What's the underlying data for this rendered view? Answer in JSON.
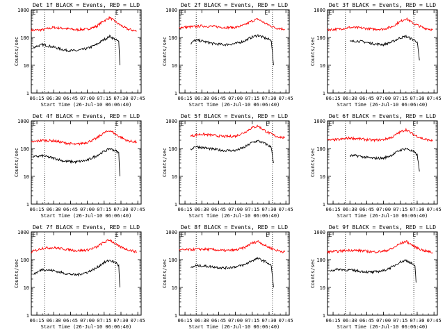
{
  "chart_data": [
    {
      "type": "line",
      "title": "Det 1f BLACK = Events, RED = LLD",
      "xlabel": "Start Time (26-Jul-10 06:06:40)",
      "ylabel": "Counts/sec",
      "xticks": [
        "06:15",
        "06:30",
        "06:45",
        "07:00",
        "07:15",
        "07:30",
        "07:45"
      ],
      "yticks": [
        "1",
        "10",
        "100",
        "1000"
      ],
      "yscale": "log",
      "ylim": [
        1,
        1000
      ],
      "xlim_minutes": [
        "06:10",
        "07:48"
      ],
      "dotted_lines": [
        "06:22",
        "07:25"
      ],
      "markers": [
        {
          "label": "E",
          "at": "06:11"
        },
        {
          "label": "E",
          "at": "07:25"
        }
      ],
      "series": [
        {
          "color": "#ff0000",
          "x": [
            "06:10",
            "06:20",
            "06:30",
            "06:40",
            "06:50",
            "07:00",
            "07:08",
            "07:14",
            "07:20",
            "07:28",
            "07:36",
            "07:44"
          ],
          "y": [
            180,
            190,
            230,
            210,
            190,
            200,
            250,
            380,
            520,
            300,
            200,
            170
          ]
        },
        {
          "color": "#000000",
          "x": [
            "06:12",
            "06:20",
            "06:30",
            "06:40",
            "06:50",
            "07:00",
            "07:08",
            "07:14",
            "07:20",
            "07:26",
            "07:28",
            "07:29"
          ],
          "y": [
            45,
            55,
            45,
            35,
            33,
            40,
            55,
            80,
            110,
            80,
            70,
            10
          ]
        }
      ]
    },
    {
      "type": "line",
      "title": "Det 2f BLACK = Events, RED = LLD",
      "xlabel": "Start Time (26-Jul-10 06:06:40)",
      "ylabel": "Counts/sec",
      "xticks": [
        "06:15",
        "06:30",
        "06:45",
        "07:00",
        "07:15",
        "07:30",
        "07:45"
      ],
      "yticks": [
        "1",
        "10",
        "100",
        "1000"
      ],
      "yscale": "log",
      "ylim": [
        1,
        1000
      ],
      "xlim_minutes": [
        "06:10",
        "07:48"
      ],
      "dotted_lines": [
        "06:25",
        "07:33"
      ],
      "markers": [
        {
          "label": "E",
          "at": "06:11"
        },
        {
          "label": "E",
          "at": "07:26"
        }
      ],
      "series": [
        {
          "color": "#ff0000",
          "x": [
            "06:10",
            "06:20",
            "06:30",
            "06:40",
            "06:50",
            "07:00",
            "07:08",
            "07:14",
            "07:20",
            "07:28",
            "07:36",
            "07:44"
          ],
          "y": [
            230,
            240,
            260,
            250,
            230,
            230,
            280,
            380,
            460,
            300,
            220,
            200
          ]
        },
        {
          "color": "#000000",
          "x": [
            "06:20",
            "06:24",
            "06:30",
            "06:40",
            "06:50",
            "07:00",
            "07:08",
            "07:14",
            "07:20",
            "07:28",
            "07:32",
            "07:34"
          ],
          "y": [
            60,
            80,
            75,
            60,
            55,
            60,
            75,
            100,
            120,
            90,
            80,
            10
          ]
        }
      ]
    },
    {
      "type": "line",
      "title": "Det 3f BLACK = Events, RED = LLD",
      "xlabel": "Start Time (26-Jul-10 06:06:40)",
      "ylabel": "Counts/sec",
      "xticks": [
        "06:15",
        "06:30",
        "06:45",
        "07:00",
        "07:15",
        "07:30",
        "07:45"
      ],
      "yticks": [
        "1",
        "10",
        "100",
        "1000"
      ],
      "yscale": "log",
      "ylim": [
        1,
        1000
      ],
      "xlim_minutes": [
        "06:10",
        "07:48"
      ],
      "dotted_lines": [
        "06:26",
        "07:27"
      ],
      "markers": [
        {
          "label": "E",
          "at": "06:11"
        },
        {
          "label": "E",
          "at": "07:26"
        }
      ],
      "series": [
        {
          "color": "#ff0000",
          "x": [
            "06:10",
            "06:20",
            "06:30",
            "06:40",
            "06:50",
            "07:00",
            "07:08",
            "07:14",
            "07:20",
            "07:28",
            "07:36",
            "07:44"
          ],
          "y": [
            190,
            200,
            230,
            220,
            200,
            200,
            250,
            360,
            480,
            300,
            220,
            190
          ]
        },
        {
          "color": "#000000",
          "x": [
            "06:30",
            "06:36",
            "06:42",
            "06:50",
            "07:00",
            "07:08",
            "07:14",
            "07:20",
            "07:26",
            "07:30",
            "07:32"
          ],
          "y": [
            70,
            75,
            70,
            60,
            55,
            70,
            95,
            110,
            85,
            70,
            15
          ]
        }
      ]
    },
    {
      "type": "line",
      "title": "Det 4f BLACK = Events, RED = LLD",
      "xlabel": "Start Time (26-Jul-10 06:06:40)",
      "ylabel": "Counts/sec",
      "xticks": [
        "06:15",
        "06:30",
        "06:45",
        "07:00",
        "07:15",
        "07:30",
        "07:45"
      ],
      "yticks": [
        "1",
        "10",
        "100",
        "1000"
      ],
      "yscale": "log",
      "ylim": [
        1,
        1000
      ],
      "xlim_minutes": [
        "06:10",
        "07:48"
      ],
      "dotted_lines": [
        "06:22",
        "07:25"
      ],
      "markers": [
        {
          "label": "E",
          "at": "06:11"
        },
        {
          "label": "E",
          "at": "07:25"
        }
      ],
      "series": [
        {
          "color": "#ff0000",
          "x": [
            "06:10",
            "06:20",
            "06:30",
            "06:40",
            "06:50",
            "07:00",
            "07:08",
            "07:14",
            "07:20",
            "07:28",
            "07:36",
            "07:44"
          ],
          "y": [
            170,
            200,
            190,
            160,
            140,
            170,
            230,
            350,
            450,
            280,
            190,
            170
          ]
        },
        {
          "color": "#000000",
          "x": [
            "06:12",
            "06:20",
            "06:30",
            "06:40",
            "06:50",
            "07:00",
            "07:08",
            "07:14",
            "07:20",
            "07:26",
            "07:28",
            "07:29"
          ],
          "y": [
            50,
            55,
            45,
            35,
            33,
            38,
            55,
            75,
            100,
            80,
            70,
            10
          ]
        }
      ]
    },
    {
      "type": "line",
      "title": "Det 5f BLACK = Events, RED = LLD",
      "xlabel": "Start Time (26-Jul-10 06:06:40)",
      "ylabel": "Counts/sec",
      "xticks": [
        "06:15",
        "06:30",
        "06:45",
        "07:00",
        "07:15",
        "07:30",
        "07:45"
      ],
      "yticks": [
        "1",
        "10",
        "100",
        "1000"
      ],
      "yscale": "log",
      "ylim": [
        1,
        1000
      ],
      "xlim_minutes": [
        "06:10",
        "07:48"
      ],
      "dotted_lines": [
        "06:25",
        "07:33"
      ],
      "markers": [
        {
          "label": "E",
          "at": "06:11"
        },
        {
          "label": "E",
          "at": "07:27"
        }
      ],
      "series": [
        {
          "color": "#ff0000",
          "x": [
            "06:20",
            "06:25",
            "06:30",
            "06:40",
            "06:50",
            "07:00",
            "07:08",
            "07:14",
            "07:20",
            "07:28",
            "07:36",
            "07:44"
          ],
          "y": [
            280,
            310,
            330,
            300,
            270,
            280,
            380,
            550,
            650,
            400,
            280,
            240
          ]
        },
        {
          "color": "#000000",
          "x": [
            "06:20",
            "06:24",
            "06:30",
            "06:40",
            "06:50",
            "07:00",
            "07:08",
            "07:14",
            "07:20",
            "07:28",
            "07:32",
            "07:34"
          ],
          "y": [
            90,
            120,
            110,
            95,
            85,
            85,
            110,
            160,
            190,
            140,
            110,
            30
          ]
        }
      ]
    },
    {
      "type": "line",
      "title": "Det 6f BLACK = Events, RED = LLD",
      "xlabel": "Start Time (26-Jul-10 06:06:40)",
      "ylabel": "Counts/sec",
      "xticks": [
        "06:15",
        "06:30",
        "06:45",
        "07:00",
        "07:15",
        "07:30",
        "07:45"
      ],
      "yticks": [
        "1",
        "10",
        "100",
        "1000"
      ],
      "yscale": "log",
      "ylim": [
        1,
        1000
      ],
      "xlim_minutes": [
        "06:10",
        "07:48"
      ],
      "dotted_lines": [
        "06:26",
        "07:27"
      ],
      "markers": [
        {
          "label": "E",
          "at": "06:11"
        },
        {
          "label": "E",
          "at": "07:26"
        }
      ],
      "series": [
        {
          "color": "#ff0000",
          "x": [
            "06:10",
            "06:20",
            "06:30",
            "06:40",
            "06:50",
            "07:00",
            "07:08",
            "07:14",
            "07:20",
            "07:28",
            "07:36",
            "07:44"
          ],
          "y": [
            200,
            210,
            240,
            220,
            200,
            210,
            260,
            380,
            480,
            300,
            220,
            190
          ]
        },
        {
          "color": "#000000",
          "x": [
            "06:30",
            "06:36",
            "06:42",
            "06:50",
            "07:00",
            "07:08",
            "07:14",
            "07:20",
            "07:26",
            "07:30",
            "07:32"
          ],
          "y": [
            55,
            55,
            50,
            45,
            45,
            60,
            85,
            100,
            80,
            60,
            15
          ]
        }
      ]
    },
    {
      "type": "line",
      "title": "Det 7f BLACK = Events, RED = LLD",
      "xlabel": "Start Time (26-Jul-10 06:06:40)",
      "ylabel": "Counts/sec",
      "xticks": [
        "06:15",
        "06:30",
        "06:45",
        "07:00",
        "07:15",
        "07:30",
        "07:45"
      ],
      "yticks": [
        "1",
        "10",
        "100",
        "1000"
      ],
      "yscale": "log",
      "ylim": [
        1,
        1000
      ],
      "xlim_minutes": [
        "06:10",
        "07:48"
      ],
      "dotted_lines": [
        "06:22",
        "07:25"
      ],
      "markers": [
        {
          "label": "E",
          "at": "06:11"
        },
        {
          "label": "E",
          "at": "07:25"
        }
      ],
      "series": [
        {
          "color": "#ff0000",
          "x": [
            "06:10",
            "06:20",
            "06:30",
            "06:40",
            "06:50",
            "07:00",
            "07:08",
            "07:14",
            "07:20",
            "07:28",
            "07:36",
            "07:44"
          ],
          "y": [
            190,
            260,
            270,
            240,
            210,
            220,
            280,
            400,
            520,
            300,
            230,
            190
          ]
        },
        {
          "color": "#000000",
          "x": [
            "06:12",
            "06:20",
            "06:30",
            "06:40",
            "06:50",
            "07:00",
            "07:08",
            "07:14",
            "07:20",
            "07:26",
            "07:28",
            "07:29"
          ],
          "y": [
            30,
            45,
            40,
            32,
            28,
            35,
            50,
            75,
            95,
            75,
            60,
            10
          ]
        }
      ]
    },
    {
      "type": "line",
      "title": "Det 8f BLACK = Events, RED = LLD",
      "xlabel": "Start Time (26-Jul-10 06:06:40)",
      "ylabel": "Counts/sec",
      "xticks": [
        "06:15",
        "06:30",
        "06:45",
        "07:00",
        "07:15",
        "07:30",
        "07:45"
      ],
      "yticks": [
        "1",
        "10",
        "100",
        "1000"
      ],
      "yscale": "log",
      "ylim": [
        1,
        1000
      ],
      "xlim_minutes": [
        "06:10",
        "07:48"
      ],
      "dotted_lines": [
        "06:25",
        "07:33"
      ],
      "markers": [
        {
          "label": "E",
          "at": "06:11"
        },
        {
          "label": "E",
          "at": "07:27"
        }
      ],
      "series": [
        {
          "color": "#ff0000",
          "x": [
            "06:10",
            "06:20",
            "06:30",
            "06:40",
            "06:50",
            "07:00",
            "07:08",
            "07:14",
            "07:20",
            "07:28",
            "07:36",
            "07:44"
          ],
          "y": [
            220,
            230,
            240,
            230,
            210,
            220,
            270,
            380,
            460,
            300,
            220,
            190
          ]
        },
        {
          "color": "#000000",
          "x": [
            "06:20",
            "06:24",
            "06:30",
            "06:40",
            "06:50",
            "07:00",
            "07:08",
            "07:14",
            "07:20",
            "07:28",
            "07:32",
            "07:34"
          ],
          "y": [
            50,
            60,
            60,
            55,
            50,
            55,
            65,
            90,
            110,
            80,
            60,
            10
          ]
        }
      ]
    },
    {
      "type": "line",
      "title": "Det 9f BLACK = Events, RED = LLD",
      "xlabel": "Start Time (26-Jul-10 06:06:40)",
      "ylabel": "Counts/sec",
      "xticks": [
        "06:15",
        "06:30",
        "06:45",
        "07:00",
        "07:15",
        "07:30",
        "07:45"
      ],
      "yticks": [
        "1",
        "10",
        "100",
        "1000"
      ],
      "yscale": "log",
      "ylim": [
        1,
        1000
      ],
      "xlim_minutes": [
        "06:10",
        "07:48"
      ],
      "dotted_lines": [
        "06:26",
        "07:27"
      ],
      "markers": [
        {
          "label": "E",
          "at": "06:11"
        },
        {
          "label": "E",
          "at": "07:26"
        }
      ],
      "series": [
        {
          "color": "#ff0000",
          "x": [
            "06:10",
            "06:20",
            "06:30",
            "06:40",
            "06:50",
            "07:00",
            "07:08",
            "07:14",
            "07:20",
            "07:28",
            "07:36",
            "07:44"
          ],
          "y": [
            190,
            200,
            220,
            210,
            190,
            200,
            250,
            360,
            460,
            290,
            210,
            180
          ]
        },
        {
          "color": "#000000",
          "x": [
            "06:12",
            "06:20",
            "06:30",
            "06:40",
            "06:50",
            "07:00",
            "07:08",
            "07:14",
            "07:20",
            "07:26",
            "07:28",
            "07:29"
          ],
          "y": [
            40,
            45,
            42,
            38,
            35,
            40,
            55,
            80,
            95,
            70,
            55,
            15
          ]
        }
      ]
    }
  ]
}
